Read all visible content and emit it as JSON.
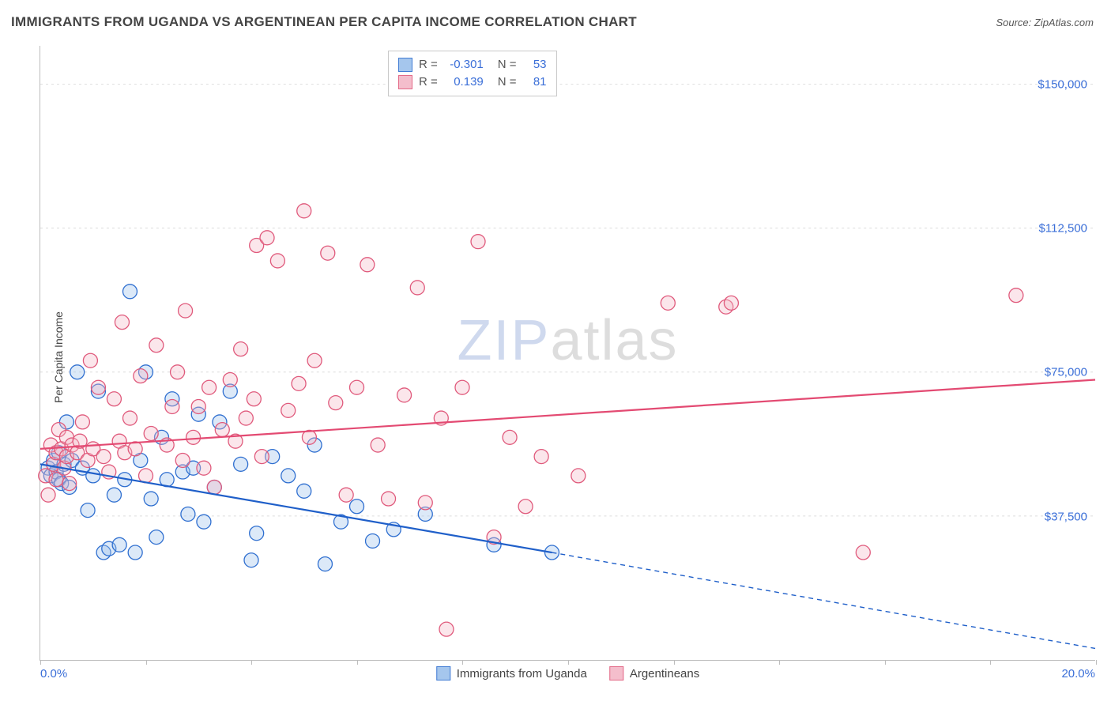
{
  "header": {
    "title": "IMMIGRANTS FROM UGANDA VS ARGENTINEAN PER CAPITA INCOME CORRELATION CHART",
    "source_prefix": "Source: ",
    "source_name": "ZipAtlas.com"
  },
  "chart": {
    "type": "scatter",
    "ylabel": "Per Capita Income",
    "xlim": [
      0,
      20
    ],
    "ylim": [
      0,
      160000
    ],
    "ytick_values": [
      37500,
      75000,
      112500,
      150000
    ],
    "ytick_labels": [
      "$37,500",
      "$75,000",
      "$112,500",
      "$150,000"
    ],
    "xtick_values": [
      0,
      2,
      4,
      6,
      8,
      10,
      12,
      14,
      16,
      18,
      20
    ],
    "xtick_label_left": "0.0%",
    "xtick_label_right": "20.0%",
    "background_color": "#ffffff",
    "grid_color": "#dcdcdc",
    "axis_color": "#bdbdbd",
    "tick_label_color": "#3b6fd8",
    "marker_radius": 9,
    "marker_stroke_width": 1.3,
    "marker_fill_opacity": 0.35,
    "line_width": 2.2,
    "watermark": {
      "part1": "ZIP",
      "part2": "atlas"
    },
    "series": [
      {
        "name": "Immigrants from Uganda",
        "color_stroke": "#2f6fd0",
        "color_fill": "#9cc0ec",
        "line_color": "#1f5fc9",
        "R": "-0.301",
        "N": "53",
        "regression": {
          "x1": 0,
          "y1": 51000,
          "x2": 9.7,
          "y2": 28000,
          "dash_to_x": 20,
          "dash_to_y": 3000
        },
        "points": [
          [
            0.15,
            50000
          ],
          [
            0.2,
            48000
          ],
          [
            0.25,
            52000
          ],
          [
            0.3,
            49000
          ],
          [
            0.35,
            54000
          ],
          [
            0.35,
            47000
          ],
          [
            0.4,
            46000
          ],
          [
            0.45,
            51000
          ],
          [
            0.5,
            62000
          ],
          [
            0.55,
            45000
          ],
          [
            0.6,
            52000
          ],
          [
            0.7,
            75000
          ],
          [
            0.8,
            50000
          ],
          [
            0.9,
            39000
          ],
          [
            1.0,
            48000
          ],
          [
            1.1,
            70000
          ],
          [
            1.2,
            28000
          ],
          [
            1.3,
            29000
          ],
          [
            1.4,
            43000
          ],
          [
            1.5,
            30000
          ],
          [
            1.6,
            47000
          ],
          [
            1.7,
            96000
          ],
          [
            1.8,
            28000
          ],
          [
            1.9,
            52000
          ],
          [
            2.0,
            75000
          ],
          [
            2.1,
            42000
          ],
          [
            2.2,
            32000
          ],
          [
            2.3,
            58000
          ],
          [
            2.4,
            47000
          ],
          [
            2.5,
            68000
          ],
          [
            2.7,
            49000
          ],
          [
            2.8,
            38000
          ],
          [
            2.9,
            50000
          ],
          [
            3.0,
            64000
          ],
          [
            3.1,
            36000
          ],
          [
            3.3,
            45000
          ],
          [
            3.4,
            62000
          ],
          [
            3.6,
            70000
          ],
          [
            3.8,
            51000
          ],
          [
            4.0,
            26000
          ],
          [
            4.1,
            33000
          ],
          [
            4.4,
            53000
          ],
          [
            4.7,
            48000
          ],
          [
            5.0,
            44000
          ],
          [
            5.2,
            56000
          ],
          [
            5.4,
            25000
          ],
          [
            5.7,
            36000
          ],
          [
            6.0,
            40000
          ],
          [
            6.3,
            31000
          ],
          [
            6.7,
            34000
          ],
          [
            7.3,
            38000
          ],
          [
            8.6,
            30000
          ],
          [
            9.7,
            28000
          ]
        ]
      },
      {
        "name": "Argentineans",
        "color_stroke": "#e05a7c",
        "color_fill": "#f3b8c7",
        "line_color": "#e34a72",
        "R": "0.139",
        "N": "81",
        "regression": {
          "x1": 0,
          "y1": 55000,
          "x2": 20,
          "y2": 73000
        },
        "points": [
          [
            0.1,
            48000
          ],
          [
            0.15,
            43000
          ],
          [
            0.2,
            56000
          ],
          [
            0.25,
            51000
          ],
          [
            0.3,
            47000
          ],
          [
            0.3,
            54000
          ],
          [
            0.35,
            60000
          ],
          [
            0.4,
            55000
          ],
          [
            0.45,
            50000
          ],
          [
            0.5,
            58000
          ],
          [
            0.5,
            53000
          ],
          [
            0.55,
            46000
          ],
          [
            0.6,
            56000
          ],
          [
            0.7,
            54000
          ],
          [
            0.75,
            57000
          ],
          [
            0.8,
            62000
          ],
          [
            0.9,
            52000
          ],
          [
            0.95,
            78000
          ],
          [
            1.0,
            55000
          ],
          [
            1.1,
            71000
          ],
          [
            1.2,
            53000
          ],
          [
            1.3,
            49000
          ],
          [
            1.4,
            68000
          ],
          [
            1.5,
            57000
          ],
          [
            1.55,
            88000
          ],
          [
            1.6,
            54000
          ],
          [
            1.7,
            63000
          ],
          [
            1.8,
            55000
          ],
          [
            1.9,
            74000
          ],
          [
            2.0,
            48000
          ],
          [
            2.1,
            59000
          ],
          [
            2.2,
            82000
          ],
          [
            2.4,
            56000
          ],
          [
            2.5,
            66000
          ],
          [
            2.6,
            75000
          ],
          [
            2.7,
            52000
          ],
          [
            2.75,
            91000
          ],
          [
            2.9,
            58000
          ],
          [
            3.0,
            66000
          ],
          [
            3.1,
            50000
          ],
          [
            3.2,
            71000
          ],
          [
            3.3,
            45000
          ],
          [
            3.45,
            60000
          ],
          [
            3.6,
            73000
          ],
          [
            3.7,
            57000
          ],
          [
            3.8,
            81000
          ],
          [
            3.9,
            63000
          ],
          [
            4.05,
            68000
          ],
          [
            4.1,
            108000
          ],
          [
            4.2,
            53000
          ],
          [
            4.3,
            110000
          ],
          [
            4.5,
            104000
          ],
          [
            4.7,
            65000
          ],
          [
            4.9,
            72000
          ],
          [
            5.0,
            117000
          ],
          [
            5.1,
            58000
          ],
          [
            5.2,
            78000
          ],
          [
            5.45,
            106000
          ],
          [
            5.6,
            67000
          ],
          [
            5.8,
            43000
          ],
          [
            6.0,
            71000
          ],
          [
            6.2,
            103000
          ],
          [
            6.4,
            56000
          ],
          [
            6.6,
            42000
          ],
          [
            6.9,
            69000
          ],
          [
            7.15,
            97000
          ],
          [
            7.3,
            41000
          ],
          [
            7.6,
            63000
          ],
          [
            7.7,
            8000
          ],
          [
            8.0,
            71000
          ],
          [
            8.3,
            109000
          ],
          [
            8.6,
            32000
          ],
          [
            8.9,
            58000
          ],
          [
            9.2,
            40000
          ],
          [
            9.5,
            53000
          ],
          [
            10.2,
            48000
          ],
          [
            11.9,
            93000
          ],
          [
            13.0,
            92000
          ],
          [
            13.1,
            93000
          ],
          [
            15.6,
            28000
          ],
          [
            18.5,
            95000
          ]
        ]
      }
    ],
    "stats_legend": {
      "R_label": "R  =",
      "N_label": "N  ="
    },
    "bottom_legend_labels": [
      "Immigrants from Uganda",
      "Argentineans"
    ]
  }
}
